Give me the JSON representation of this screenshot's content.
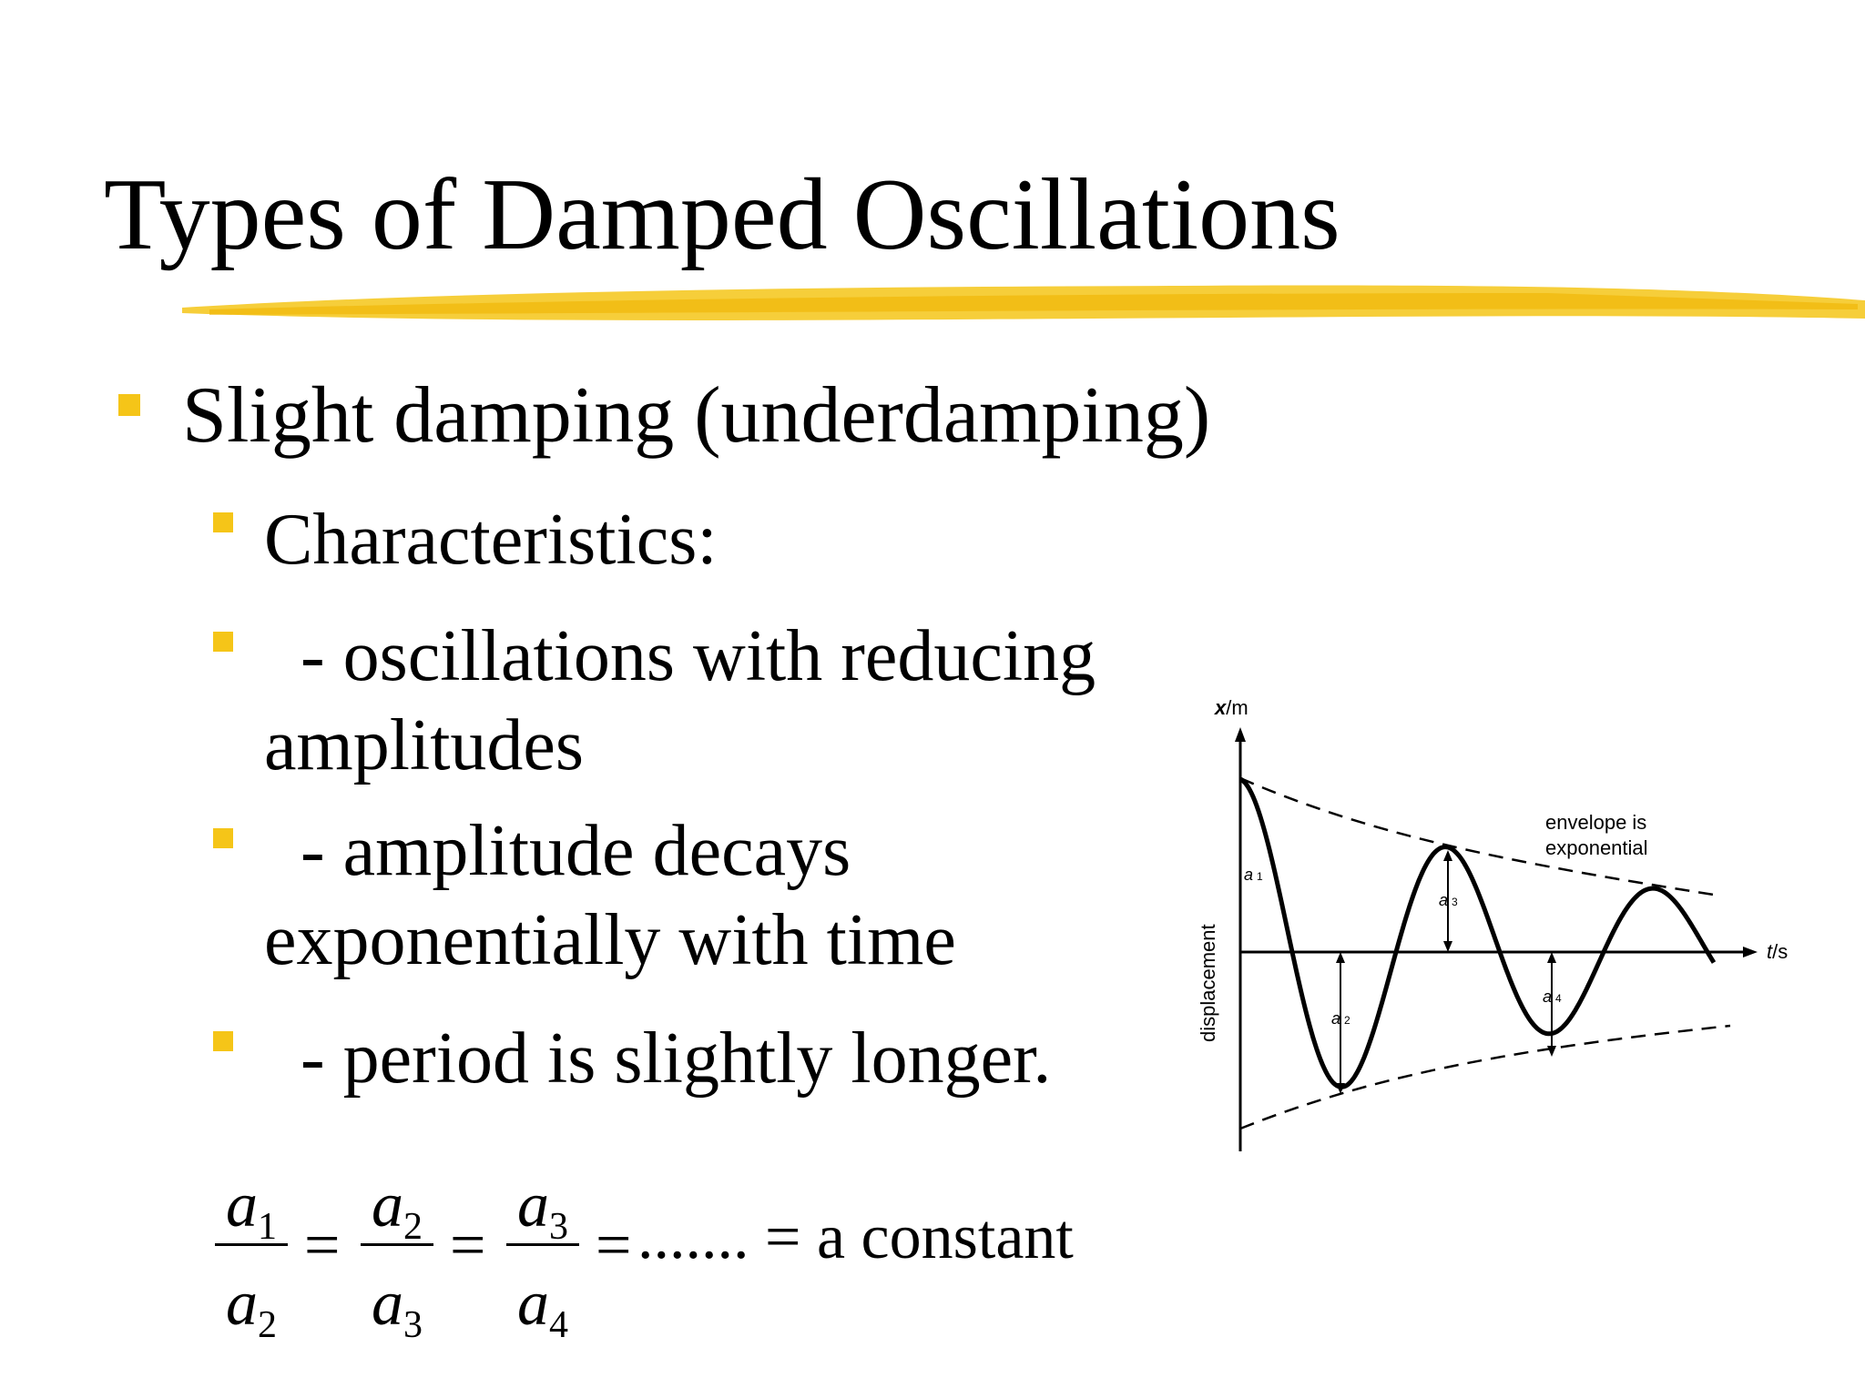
{
  "slide": {
    "title": "Types of Damped Oscillations",
    "accent_color": "#f5c518"
  },
  "bullets": {
    "level1": "Slight damping (underdamping)",
    "heading": "Characteristics:",
    "item1_line1": "  - oscillations with reducing",
    "item1_line2": "amplitudes",
    "item2_line1": "  - amplitude decays",
    "item2_line2": "exponentially with time",
    "item3": "  - period is slightly longer."
  },
  "equation": {
    "num1": "a",
    "num1_sub": "1",
    "den1": "a",
    "den1_sub": "2",
    "num2": "a",
    "num2_sub": "2",
    "den2": "a",
    "den2_sub": "3",
    "num3": "a",
    "num3_sub": "3",
    "den3": "a",
    "den3_sub": "4",
    "equals": "=",
    "dots": ".......",
    "constant_text": "a constant"
  },
  "graph": {
    "y_axis_label_bold": "x",
    "y_axis_label_unit": "/m",
    "x_axis_label_italic": "t",
    "x_axis_label_unit": "/s",
    "vertical_label": "displacement",
    "envelope_line1": "envelope is",
    "envelope_line2": "exponential",
    "a1": "a",
    "a1_sub": "1",
    "a2": "a",
    "a2_sub": "2",
    "a3": "a",
    "a3_sub": "3",
    "a4": "a",
    "a4_sub": "4"
  }
}
